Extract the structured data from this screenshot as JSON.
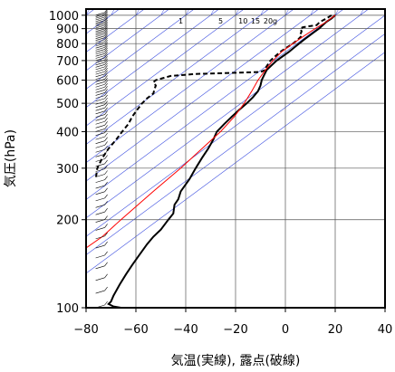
{
  "chart_data": {
    "type": "line",
    "xlabel": "気温(実線), 露点(破線)",
    "ylabel": "気圧(hPa)",
    "x_range": [
      -80,
      40
    ],
    "y_range_hPa": [
      1050,
      100
    ],
    "y_scale": "log",
    "x_ticks": [
      {
        "value": -80,
        "label": "−80"
      },
      {
        "value": -60,
        "label": "−60"
      },
      {
        "value": -40,
        "label": "−40"
      },
      {
        "value": -20,
        "label": "−20"
      },
      {
        "value": 0,
        "label": "0"
      },
      {
        "value": 20,
        "label": "20"
      },
      {
        "value": 40,
        "label": "40"
      }
    ],
    "y_ticks": [
      {
        "value": 100,
        "label": "100"
      },
      {
        "value": 200,
        "label": "200"
      },
      {
        "value": 300,
        "label": "300"
      },
      {
        "value": 400,
        "label": "400"
      },
      {
        "value": 500,
        "label": "500"
      },
      {
        "value": 600,
        "label": "600"
      },
      {
        "value": 700,
        "label": "700"
      },
      {
        "value": 800,
        "label": "800"
      },
      {
        "value": 900,
        "label": "900"
      },
      {
        "value": 1000,
        "label": "1000"
      }
    ],
    "mixing_ratio_labels": [
      {
        "value": "1",
        "t_at_label": -42
      },
      {
        "value": "5",
        "t_at_label": -26
      },
      {
        "value": "10",
        "t_at_label": -17
      },
      {
        "value": "15",
        "t_at_label": -12
      },
      {
        "value": "20g",
        "t_at_label": -6
      }
    ],
    "background_isotherm_spacing_C": 10,
    "grid": true,
    "series": [
      {
        "role": "temperature",
        "style": "solid",
        "color": "#000000",
        "points": [
          {
            "p": 1000,
            "t": 20.0
          },
          {
            "p": 975,
            "t": 18.5
          },
          {
            "p": 950,
            "t": 16.5
          },
          {
            "p": 925,
            "t": 15.0
          },
          {
            "p": 900,
            "t": 13.5
          },
          {
            "p": 875,
            "t": 11.5
          },
          {
            "p": 850,
            "t": 9.5
          },
          {
            "p": 825,
            "t": 7.5
          },
          {
            "p": 800,
            "t": 5.5
          },
          {
            "p": 775,
            "t": 3.5
          },
          {
            "p": 750,
            "t": 1.5
          },
          {
            "p": 725,
            "t": -1.0
          },
          {
            "p": 700,
            "t": -3.5
          },
          {
            "p": 675,
            "t": -5.5
          },
          {
            "p": 650,
            "t": -7.5
          },
          {
            "p": 625,
            "t": -8.5
          },
          {
            "p": 600,
            "t": -9.5
          },
          {
            "p": 575,
            "t": -10.0
          },
          {
            "p": 550,
            "t": -11.0
          },
          {
            "p": 525,
            "t": -13.0
          },
          {
            "p": 500,
            "t": -15.5
          },
          {
            "p": 475,
            "t": -18.5
          },
          {
            "p": 450,
            "t": -21.5
          },
          {
            "p": 425,
            "t": -24.5
          },
          {
            "p": 400,
            "t": -27.5
          },
          {
            "p": 375,
            "t": -29.0
          },
          {
            "p": 350,
            "t": -31.0
          },
          {
            "p": 325,
            "t": -33.5
          },
          {
            "p": 300,
            "t": -36.0
          },
          {
            "p": 275,
            "t": -38.5
          },
          {
            "p": 250,
            "t": -42.0
          },
          {
            "p": 235,
            "t": -43.0
          },
          {
            "p": 225,
            "t": -44.5
          },
          {
            "p": 210,
            "t": -45.0
          },
          {
            "p": 200,
            "t": -47.0
          },
          {
            "p": 185,
            "t": -50.0
          },
          {
            "p": 175,
            "t": -53.0
          },
          {
            "p": 165,
            "t": -55.5
          },
          {
            "p": 150,
            "t": -59.0
          },
          {
            "p": 140,
            "t": -61.5
          },
          {
            "p": 130,
            "t": -64.0
          },
          {
            "p": 120,
            "t": -66.5
          },
          {
            "p": 110,
            "t": -69.0
          },
          {
            "p": 105,
            "t": -70.0
          },
          {
            "p": 103,
            "t": -71.0
          },
          {
            "p": 101,
            "t": -69.0
          },
          {
            "p": 100,
            "t": -66.0
          }
        ]
      },
      {
        "role": "dewpoint",
        "style": "dashed",
        "color": "#000000",
        "points": [
          {
            "p": 1000,
            "t": 18.5
          },
          {
            "p": 975,
            "t": 16.5
          },
          {
            "p": 950,
            "t": 14.0
          },
          {
            "p": 925,
            "t": 12.5
          },
          {
            "p": 910,
            "t": 7.0
          },
          {
            "p": 900,
            "t": 6.0
          },
          {
            "p": 880,
            "t": 6.5
          },
          {
            "p": 860,
            "t": 6.0
          },
          {
            "p": 850,
            "t": 6.5
          },
          {
            "p": 825,
            "t": 5.0
          },
          {
            "p": 800,
            "t": 3.0
          },
          {
            "p": 775,
            "t": 0.5
          },
          {
            "p": 750,
            "t": -2.0
          },
          {
            "p": 725,
            "t": -4.0
          },
          {
            "p": 700,
            "t": -6.0
          },
          {
            "p": 680,
            "t": -7.0
          },
          {
            "p": 660,
            "t": -8.0
          },
          {
            "p": 650,
            "t": -8.0
          },
          {
            "p": 640,
            "t": -10.0
          },
          {
            "p": 635,
            "t": -22.0
          },
          {
            "p": 630,
            "t": -36.0
          },
          {
            "p": 620,
            "t": -46.0
          },
          {
            "p": 600,
            "t": -52.0
          },
          {
            "p": 590,
            "t": -53.0
          },
          {
            "p": 575,
            "t": -52.0
          },
          {
            "p": 560,
            "t": -52.5
          },
          {
            "p": 540,
            "t": -53.0
          },
          {
            "p": 520,
            "t": -55.5
          },
          {
            "p": 500,
            "t": -57.5
          },
          {
            "p": 475,
            "t": -59.5
          },
          {
            "p": 450,
            "t": -61.5
          },
          {
            "p": 425,
            "t": -63.0
          },
          {
            "p": 400,
            "t": -65.5
          },
          {
            "p": 375,
            "t": -68.0
          },
          {
            "p": 350,
            "t": -71.0
          },
          {
            "p": 325,
            "t": -73.5
          },
          {
            "p": 300,
            "t": -75.5
          },
          {
            "p": 280,
            "t": -76.0
          }
        ]
      },
      {
        "role": "parcel",
        "style": "solid",
        "color": "#ff0000",
        "points": [
          {
            "p": 1000,
            "t": 20.0
          },
          {
            "p": 950,
            "t": 16.5
          },
          {
            "p": 900,
            "t": 12.0
          },
          {
            "p": 850,
            "t": 7.5
          },
          {
            "p": 800,
            "t": 3.0
          },
          {
            "p": 750,
            "t": -1.5
          },
          {
            "p": 700,
            "t": -5.0
          },
          {
            "p": 650,
            "t": -8.0
          },
          {
            "p": 600,
            "t": -11.0
          },
          {
            "p": 550,
            "t": -13.5
          },
          {
            "p": 500,
            "t": -16.5
          },
          {
            "p": 450,
            "t": -20.5
          },
          {
            "p": 400,
            "t": -26.0
          },
          {
            "p": 350,
            "t": -33.5
          },
          {
            "p": 300,
            "t": -42.0
          },
          {
            "p": 250,
            "t": -53.0
          },
          {
            "p": 200,
            "t": -66.0
          },
          {
            "p": 175,
            "t": -73.5
          },
          {
            "p": 160,
            "t": -80.0
          }
        ]
      }
    ]
  }
}
